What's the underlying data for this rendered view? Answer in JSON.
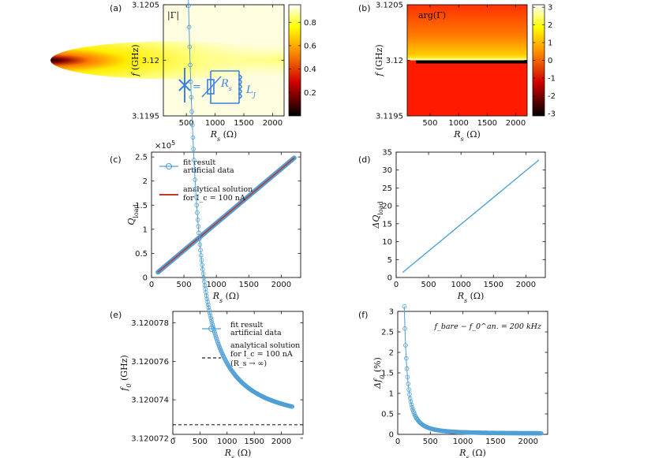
{
  "panels": {
    "a": "(a)",
    "b": "(b)",
    "c": "(c)",
    "d": "(d)",
    "e": "(e)",
    "f": "(f)"
  },
  "colors": {
    "blue": "#4f9fd6",
    "red": "#c0392b",
    "dashed": "#222222",
    "inset": "#3b82e0"
  },
  "chart_data": [
    {
      "id": "a",
      "type": "heatmap",
      "title": "|Γ|",
      "xlabel": "R_s (Ω)",
      "ylabel": "f (GHz)",
      "xlim": [
        100,
        2200
      ],
      "ylim": [
        3.1195,
        3.1205
      ],
      "xticks": [
        500,
        1000,
        1500,
        2000
      ],
      "yticks": [
        "3.1195",
        "3.12",
        "3.1205"
      ],
      "colorbar": {
        "range": [
          0,
          0.95
        ],
        "ticks": [
          "0.2",
          "0.4",
          "0.6",
          "0.8"
        ],
        "colormap": "hot"
      },
      "resonance_f": 3.12,
      "inset": {
        "labels": [
          "R_s",
          "L_J"
        ],
        "equals": "="
      }
    },
    {
      "id": "b",
      "type": "heatmap",
      "title": "arg(Γ)",
      "xlabel": "R_s (Ω)",
      "ylabel": "f (GHz)",
      "xlim": [
        100,
        2200
      ],
      "ylim": [
        3.1195,
        3.1205
      ],
      "xticks": [
        500,
        1000,
        1500,
        2000
      ],
      "yticks": [
        "3.1195",
        "3.12",
        "3.1205"
      ],
      "colorbar": {
        "range": [
          -3.14,
          3.14
        ],
        "ticks": [
          "3",
          "2",
          "1",
          "0",
          "-1",
          "-2",
          "-3"
        ],
        "colormap": "hot"
      },
      "resonance_f": 3.12
    },
    {
      "id": "c",
      "type": "line",
      "xlabel": "R_s (Ω)",
      "ylabel": "Q_load",
      "xlim": [
        0,
        2300
      ],
      "ylim": [
        0,
        2.6
      ],
      "exponent": "×10^5",
      "xticks": [
        0,
        500,
        1000,
        1500,
        2000
      ],
      "yticks": [
        0,
        0.5,
        1,
        1.5,
        2,
        2.5
      ],
      "series": [
        {
          "name": "fit result artificial data",
          "x": [
            100,
            2200
          ],
          "y": [
            0.11,
            2.48
          ]
        },
        {
          "name": "analytical solution for I_c = 100 nA",
          "x": [
            100,
            2200
          ],
          "y": [
            0.11,
            2.48
          ]
        }
      ],
      "legend": [
        "fit result",
        "artificial data",
        "analytical solution",
        "for I_c = 100 nA"
      ]
    },
    {
      "id": "d",
      "type": "line",
      "xlabel": "R_s (Ω)",
      "ylabel": "ΔQ_load",
      "xlim": [
        0,
        2300
      ],
      "ylim": [
        0,
        35
      ],
      "xticks": [
        0,
        500,
        1000,
        1500,
        2000
      ],
      "yticks": [
        0,
        5,
        10,
        15,
        20,
        25,
        30,
        35
      ],
      "series": [
        {
          "x": [
            100,
            2200
          ],
          "y": [
            1.4,
            32.8
          ]
        }
      ]
    },
    {
      "id": "e",
      "type": "scatter",
      "xlabel": "R_s (Ω)",
      "ylabel": "f_0 (GHz)",
      "xlim": [
        0,
        2400
      ],
      "ylim": [
        3.1200722,
        3.1200786
      ],
      "xticks": [
        0,
        500,
        1000,
        1500,
        2000
      ],
      "yticks": [
        "3.120072",
        "3.120074",
        "3.120076",
        "3.120078"
      ],
      "asymptote": 3.1200727,
      "model": {
        "a": 0.143,
        "b": 3.1200727,
        "exponent": 1.55
      },
      "legend": [
        "fit result",
        "artificial data",
        "analytical solution",
        "for I_c = 100 nA",
        "(R_s → ∞)"
      ]
    },
    {
      "id": "f",
      "type": "scatter",
      "xlabel": "R_s (Ω)",
      "ylabel": "Δf_0 (%)",
      "xlim": [
        0,
        2300
      ],
      "ylim": [
        0,
        3
      ],
      "xticks": [
        0,
        500,
        1000,
        1500,
        2000
      ],
      "yticks": [
        0,
        0.5,
        1,
        1.5,
        2,
        2.5,
        3
      ],
      "annotation": "f_bare − f_0^an. = 200 kHz",
      "model": {
        "a": 31000,
        "b": 0.02,
        "exponent": 2.0
      }
    }
  ]
}
